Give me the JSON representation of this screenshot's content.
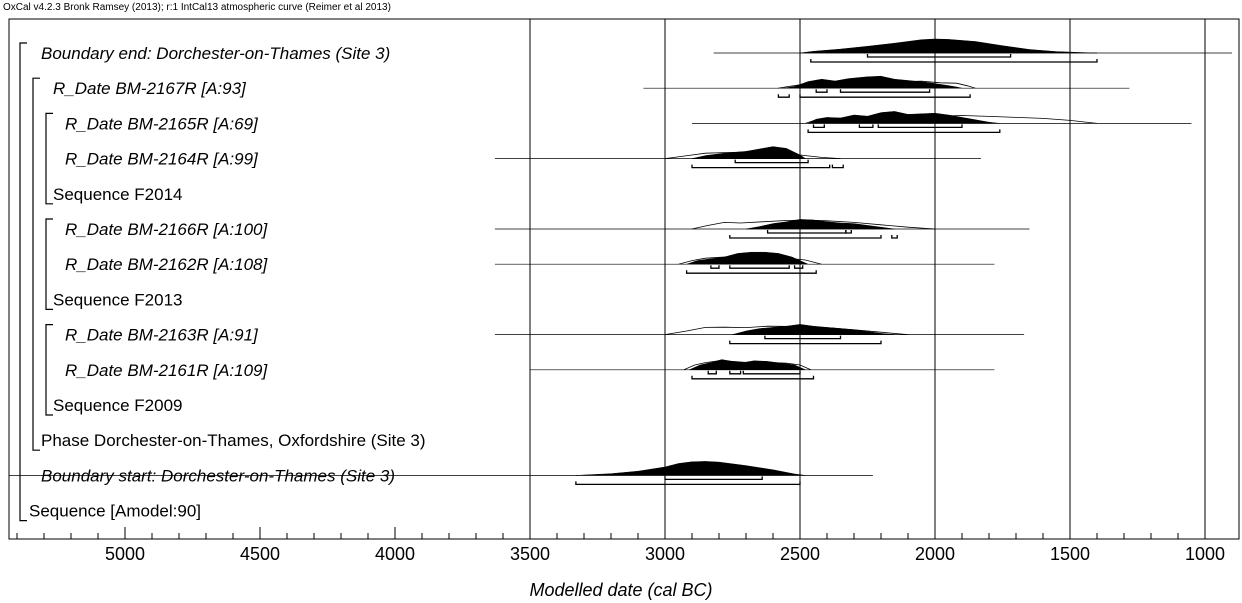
{
  "header": "OxCal v4.2.3 Bronk Ramsey (2013); r:1 IntCal13 atmospheric curve (Reimer et al 2013)",
  "chart_data": {
    "type": "area",
    "title": "",
    "xlabel": "Modelled date (cal BC)",
    "ylabel": "",
    "xlim": [
      5450,
      950
    ],
    "x_reversed": true,
    "x_ticks": [
      5000,
      4500,
      4000,
      3500,
      3000,
      2500,
      2000,
      1500,
      1000
    ],
    "grid_lines": [
      3500,
      3000,
      2500,
      2000,
      1500,
      1000
    ],
    "rows": [
      {
        "label": "Boundary end: Dorchester-on-Thames (Site 3)",
        "kind": "modelled",
        "italic": true,
        "depth": 1,
        "line": [
          2820,
          900
        ],
        "posterior": [
          [
            2500,
            0
          ],
          [
            2450,
            0.12
          ],
          [
            2350,
            0.28
          ],
          [
            2250,
            0.48
          ],
          [
            2150,
            0.7
          ],
          [
            2050,
            0.95
          ],
          [
            2000,
            1
          ],
          [
            1950,
            0.97
          ],
          [
            1850,
            0.82
          ],
          [
            1750,
            0.52
          ],
          [
            1650,
            0.25
          ],
          [
            1550,
            0.1
          ],
          [
            1450,
            0.03
          ],
          [
            1400,
            0
          ]
        ],
        "hpd68": [
          [
            2250,
            1720
          ]
        ],
        "hpd95": [
          [
            2460,
            1400
          ]
        ]
      },
      {
        "label": "R_Date BM-2167R [A:93]",
        "kind": "rdate",
        "italic": true,
        "depth": 2,
        "line": [
          3080,
          1280
        ],
        "prior": [
          [
            2580,
            0
          ],
          [
            2540,
            0.15
          ],
          [
            2480,
            0.35
          ],
          [
            2420,
            0.5
          ],
          [
            2350,
            0.55
          ],
          [
            2280,
            0.62
          ],
          [
            2200,
            0.7
          ],
          [
            2120,
            0.55
          ],
          [
            2050,
            0.58
          ],
          [
            1980,
            0.45
          ],
          [
            1920,
            0.42
          ],
          [
            1880,
            0.2
          ],
          [
            1850,
            0
          ]
        ],
        "posterior": [
          [
            2560,
            0
          ],
          [
            2520,
            0.15
          ],
          [
            2470,
            0.55
          ],
          [
            2420,
            0.75
          ],
          [
            2370,
            0.6
          ],
          [
            2320,
            0.8
          ],
          [
            2250,
            0.95
          ],
          [
            2200,
            1
          ],
          [
            2150,
            0.75
          ],
          [
            2080,
            0.6
          ],
          [
            2020,
            0.45
          ],
          [
            1960,
            0.25
          ],
          [
            1920,
            0.1
          ],
          [
            1900,
            0
          ]
        ],
        "hpd68": [
          [
            2440,
            2400
          ],
          [
            2350,
            2020
          ]
        ],
        "hpd95": [
          [
            2580,
            2540
          ],
          [
            2500,
            1870
          ]
        ]
      },
      {
        "label": "R_Date BM-2165R [A:69]",
        "kind": "rdate",
        "italic": true,
        "depth": 3,
        "line": [
          2900,
          1050
        ],
        "prior": [
          [
            2480,
            0
          ],
          [
            2440,
            0.3
          ],
          [
            2380,
            0.4
          ],
          [
            2300,
            0.5
          ],
          [
            2220,
            0.6
          ],
          [
            2150,
            0.58
          ],
          [
            2080,
            0.52
          ],
          [
            2000,
            0.6
          ],
          [
            1900,
            0.66
          ],
          [
            1800,
            0.58
          ],
          [
            1700,
            0.5
          ],
          [
            1600,
            0.42
          ],
          [
            1500,
            0.25
          ],
          [
            1400,
            0
          ]
        ],
        "posterior": [
          [
            2470,
            0
          ],
          [
            2440,
            0.35
          ],
          [
            2400,
            0.5
          ],
          [
            2350,
            0.45
          ],
          [
            2300,
            0.7
          ],
          [
            2250,
            0.6
          ],
          [
            2200,
            0.9
          ],
          [
            2150,
            1
          ],
          [
            2100,
            0.75
          ],
          [
            2050,
            0.8
          ],
          [
            2000,
            0.85
          ],
          [
            1950,
            0.7
          ],
          [
            1900,
            0.5
          ],
          [
            1850,
            0.3
          ],
          [
            1800,
            0.1
          ],
          [
            1760,
            0
          ]
        ],
        "hpd68": [
          [
            2450,
            2410
          ],
          [
            2280,
            2230
          ],
          [
            2210,
            1900
          ]
        ],
        "hpd95": [
          [
            2470,
            1760
          ]
        ]
      },
      {
        "label": "R_Date BM-2164R [A:99]",
        "kind": "rdate",
        "italic": true,
        "depth": 3,
        "line": [
          3630,
          1830
        ],
        "prior": [
          [
            3000,
            0
          ],
          [
            2900,
            0.3
          ],
          [
            2850,
            0.45
          ],
          [
            2780,
            0.5
          ],
          [
            2700,
            0.55
          ],
          [
            2620,
            0.6
          ],
          [
            2560,
            0.48
          ],
          [
            2500,
            0.3
          ],
          [
            2420,
            0.1
          ],
          [
            2350,
            0
          ]
        ],
        "posterior": [
          [
            2900,
            0
          ],
          [
            2850,
            0.25
          ],
          [
            2780,
            0.45
          ],
          [
            2700,
            0.6
          ],
          [
            2650,
            0.8
          ],
          [
            2600,
            1
          ],
          [
            2550,
            0.85
          ],
          [
            2500,
            0.3
          ],
          [
            2480,
            0
          ]
        ],
        "hpd68": [
          [
            2740,
            2470
          ]
        ],
        "hpd95": [
          [
            2900,
            2390
          ],
          [
            2380,
            2340
          ]
        ]
      },
      {
        "label": "Sequence F2014",
        "kind": "sequence",
        "italic": false,
        "depth": 2
      },
      {
        "label": "R_Date BM-2166R [A:100]",
        "kind": "rdate",
        "italic": true,
        "depth": 3,
        "line": [
          3630,
          1650
        ],
        "prior": [
          [
            2900,
            0
          ],
          [
            2840,
            0.3
          ],
          [
            2780,
            0.55
          ],
          [
            2720,
            0.5
          ],
          [
            2640,
            0.6
          ],
          [
            2560,
            0.7
          ],
          [
            2480,
            0.75
          ],
          [
            2400,
            0.68
          ],
          [
            2300,
            0.55
          ],
          [
            2200,
            0.35
          ],
          [
            2100,
            0.15
          ],
          [
            2000,
            0
          ]
        ],
        "posterior": [
          [
            2700,
            0
          ],
          [
            2650,
            0.2
          ],
          [
            2600,
            0.45
          ],
          [
            2550,
            0.6
          ],
          [
            2500,
            0.8
          ],
          [
            2450,
            0.75
          ],
          [
            2400,
            0.6
          ],
          [
            2350,
            0.5
          ],
          [
            2300,
            0.45
          ],
          [
            2250,
            0.3
          ],
          [
            2200,
            0.15
          ],
          [
            2150,
            0
          ]
        ],
        "hpd68": [
          [
            2620,
            2330
          ],
          [
            2330,
            2310
          ]
        ],
        "hpd95": [
          [
            2760,
            2200
          ],
          [
            2160,
            2140
          ]
        ]
      },
      {
        "label": "R_Date BM-2162R [A:108]",
        "kind": "rdate",
        "italic": true,
        "depth": 3,
        "line": [
          3630,
          1780
        ],
        "prior": [
          [
            2950,
            0
          ],
          [
            2900,
            0.3
          ],
          [
            2850,
            0.5
          ],
          [
            2780,
            0.6
          ],
          [
            2700,
            0.58
          ],
          [
            2620,
            0.55
          ],
          [
            2550,
            0.5
          ],
          [
            2480,
            0.35
          ],
          [
            2420,
            0
          ]
        ],
        "posterior": [
          [
            2920,
            0
          ],
          [
            2880,
            0.3
          ],
          [
            2830,
            0.45
          ],
          [
            2780,
            0.6
          ],
          [
            2730,
            0.9
          ],
          [
            2680,
            1
          ],
          [
            2630,
            1
          ],
          [
            2580,
            0.9
          ],
          [
            2530,
            0.6
          ],
          [
            2490,
            0.2
          ],
          [
            2470,
            0
          ]
        ],
        "hpd68": [
          [
            2830,
            2800
          ],
          [
            2760,
            2540
          ],
          [
            2520,
            2490
          ]
        ],
        "hpd95": [
          [
            2920,
            2440
          ]
        ]
      },
      {
        "label": "Sequence F2013",
        "kind": "sequence",
        "italic": false,
        "depth": 2
      },
      {
        "label": "R_Date BM-2163R [A:91]",
        "kind": "rdate",
        "italic": true,
        "depth": 3,
        "line": [
          3630,
          1670
        ],
        "prior": [
          [
            3000,
            0
          ],
          [
            2920,
            0.3
          ],
          [
            2850,
            0.6
          ],
          [
            2780,
            0.62
          ],
          [
            2700,
            0.58
          ],
          [
            2620,
            0.7
          ],
          [
            2540,
            0.68
          ],
          [
            2460,
            0.62
          ],
          [
            2380,
            0.55
          ],
          [
            2300,
            0.4
          ],
          [
            2200,
            0.2
          ],
          [
            2100,
            0
          ]
        ],
        "posterior": [
          [
            2750,
            0
          ],
          [
            2700,
            0.3
          ],
          [
            2650,
            0.5
          ],
          [
            2600,
            0.6
          ],
          [
            2550,
            0.7
          ],
          [
            2500,
            0.85
          ],
          [
            2450,
            0.7
          ],
          [
            2400,
            0.6
          ],
          [
            2350,
            0.5
          ],
          [
            2300,
            0.4
          ],
          [
            2250,
            0.25
          ],
          [
            2200,
            0.1
          ],
          [
            2150,
            0
          ]
        ],
        "hpd68": [
          [
            2630,
            2350
          ]
        ],
        "hpd95": [
          [
            2760,
            2200
          ]
        ]
      },
      {
        "label": "R_Date BM-2161R [A:109]",
        "kind": "rdate",
        "italic": true,
        "depth": 3,
        "line": [
          3500,
          1780
        ],
        "prior": [
          [
            2930,
            0
          ],
          [
            2890,
            0.4
          ],
          [
            2850,
            0.6
          ],
          [
            2800,
            0.75
          ],
          [
            2750,
            0.7
          ],
          [
            2700,
            0.62
          ],
          [
            2650,
            0.68
          ],
          [
            2600,
            0.6
          ],
          [
            2550,
            0.55
          ],
          [
            2500,
            0.4
          ],
          [
            2460,
            0
          ]
        ],
        "posterior": [
          [
            2910,
            0
          ],
          [
            2870,
            0.4
          ],
          [
            2830,
            0.6
          ],
          [
            2790,
            0.85
          ],
          [
            2750,
            0.7
          ],
          [
            2710,
            0.6
          ],
          [
            2670,
            0.75
          ],
          [
            2620,
            0.7
          ],
          [
            2570,
            0.55
          ],
          [
            2520,
            0.4
          ],
          [
            2480,
            0
          ]
        ],
        "hpd68": [
          [
            2840,
            2810
          ],
          [
            2760,
            2720
          ],
          [
            2710,
            2500
          ]
        ],
        "hpd95": [
          [
            2900,
            2450
          ]
        ]
      },
      {
        "label": "Sequence F2009",
        "kind": "sequence",
        "italic": false,
        "depth": 2
      },
      {
        "label": "Phase Dorchester-on-Thames, Oxfordshire (Site 3)",
        "kind": "phase",
        "italic": false,
        "depth": 1
      },
      {
        "label": "Boundary start: Dorchester-on-Thames (Site 3)",
        "kind": "modelled",
        "italic": true,
        "depth": 1,
        "line": [
          5450,
          2230
        ],
        "posterior": [
          [
            3330,
            0
          ],
          [
            3200,
            0.12
          ],
          [
            3100,
            0.3
          ],
          [
            3000,
            0.6
          ],
          [
            2950,
            0.85
          ],
          [
            2900,
            0.97
          ],
          [
            2850,
            1
          ],
          [
            2800,
            0.95
          ],
          [
            2700,
            0.7
          ],
          [
            2600,
            0.4
          ],
          [
            2520,
            0.1
          ],
          [
            2480,
            0
          ]
        ],
        "hpd68": [
          [
            3000,
            2640
          ]
        ],
        "hpd95": [
          [
            3330,
            2500
          ]
        ]
      },
      {
        "label": "Sequence [Amodel:90]",
        "kind": "sequence",
        "italic": false,
        "depth": 0
      }
    ]
  }
}
